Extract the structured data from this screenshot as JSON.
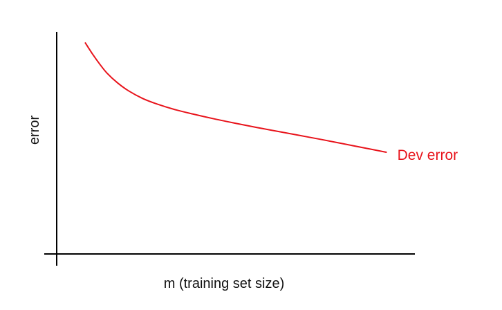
{
  "chart_data": {
    "type": "line",
    "title": "",
    "xlabel": "m (training set size)",
    "ylabel": "error",
    "grid": false,
    "legend": "none",
    "xlim": [
      0,
      100
    ],
    "ylim": [
      0,
      100
    ],
    "series": [
      {
        "name": "Dev error",
        "color": "#e8131b",
        "x": [
          8,
          10,
          12,
          14,
          17,
          20,
          24,
          28,
          33,
          38,
          44,
          50,
          56,
          62,
          68,
          74,
          80,
          86,
          92
        ],
        "y": [
          95,
          90,
          85.5,
          81.5,
          77,
          73.5,
          70,
          67.5,
          65,
          63,
          60.8,
          58.8,
          56.9,
          55.1,
          53.3,
          51.5,
          49.6,
          47.7,
          45.8
        ]
      }
    ]
  }
}
